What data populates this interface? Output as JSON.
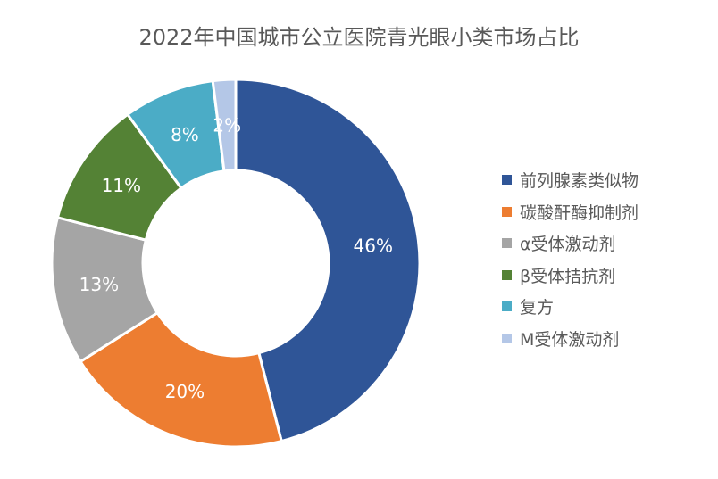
{
  "chart_data": {
    "type": "pie",
    "donut": true,
    "title": "2022年中国城市公立医院青光眼小类市场占比",
    "categories": [
      "前列腺素类似物",
      "碳酸酐酶抑制剂",
      "α受体激动剂",
      "β受体拮抗剂",
      "复方",
      "M受体激动剂"
    ],
    "values": [
      46,
      20,
      13,
      11,
      8,
      2
    ],
    "labels": [
      "46%",
      "20%",
      "13%",
      "11%",
      "8%",
      "2%"
    ],
    "colors": [
      "#2F5597",
      "#ED7D31",
      "#A5A5A5",
      "#548235",
      "#4BACC6",
      "#B4C7E7"
    ],
    "legend_position": "right"
  }
}
